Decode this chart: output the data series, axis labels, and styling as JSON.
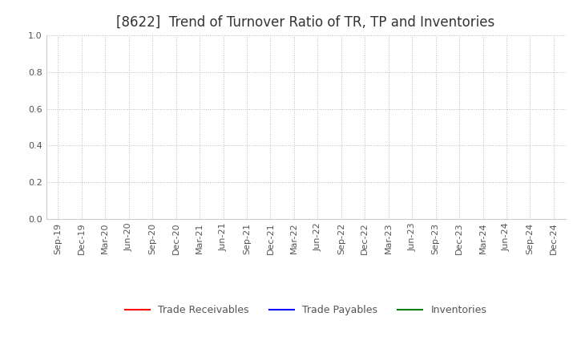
{
  "title": "[8622]  Trend of Turnover Ratio of TR, TP and Inventories",
  "x_labels": [
    "Sep-19",
    "Dec-19",
    "Mar-20",
    "Jun-20",
    "Sep-20",
    "Dec-20",
    "Mar-21",
    "Jun-21",
    "Sep-21",
    "Dec-21",
    "Mar-22",
    "Jun-22",
    "Sep-22",
    "Dec-22",
    "Mar-23",
    "Jun-23",
    "Sep-23",
    "Dec-23",
    "Mar-24",
    "Jun-24",
    "Sep-24",
    "Dec-24"
  ],
  "ylim": [
    0.0,
    1.0
  ],
  "yticks": [
    0.0,
    0.2,
    0.4,
    0.6,
    0.8,
    1.0
  ],
  "legend": [
    {
      "label": "Trade Receivables",
      "color": "#FF0000"
    },
    {
      "label": "Trade Payables",
      "color": "#0000FF"
    },
    {
      "label": "Inventories",
      "color": "#008000"
    }
  ],
  "background_color": "#FFFFFF",
  "grid_color": "#BBBBBB",
  "title_fontsize": 12,
  "title_color": "#333333",
  "tick_fontsize": 8,
  "legend_fontsize": 9,
  "tick_color": "#555555"
}
